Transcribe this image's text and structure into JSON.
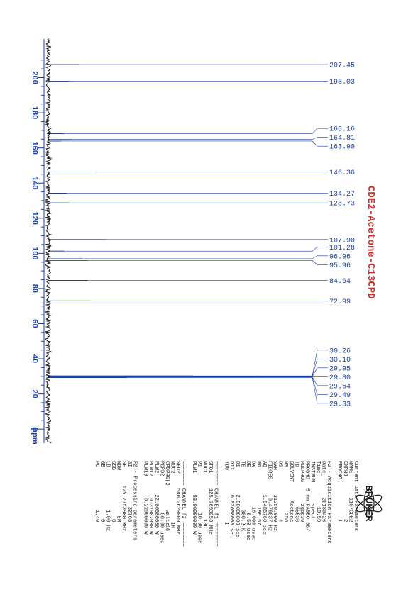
{
  "colors": {
    "spectrum": "#111111",
    "axis": "#1a3fa8",
    "title": "#d22b2b",
    "params": "#222222"
  },
  "title": "CDE2-Acetone-C13CPD",
  "brand": "BRUKER",
  "chart_data": {
    "type": "line",
    "title": "CDE2-Acetone-C13CPD",
    "xlabel": "ppm",
    "ylabel": "",
    "xlim": [
      -8,
      222
    ],
    "x_ticks": [
      200,
      180,
      160,
      140,
      120,
      100,
      80,
      60,
      40,
      20,
      0
    ],
    "x_tick_labels": [
      "200",
      "180",
      "160",
      "140",
      "120",
      "100",
      "80",
      "60",
      "40",
      "20",
      "0"
    ],
    "grid": false,
    "orientation": "rotated-90",
    "peaks": [
      {
        "ppm": 207.45,
        "label": "207.45",
        "height": 0.12
      },
      {
        "ppm": 198.03,
        "label": "198.03",
        "height": 0.08
      },
      {
        "ppm": 168.16,
        "label": "168.16",
        "height": 0.06
      },
      {
        "ppm": 164.81,
        "label": "164.81",
        "height": 0.09
      },
      {
        "ppm": 163.9,
        "label": "163.90",
        "height": 0.05
      },
      {
        "ppm": 146.36,
        "label": "146.36",
        "height": 0.17
      },
      {
        "ppm": 134.27,
        "label": "134.27",
        "height": 0.07
      },
      {
        "ppm": 128.73,
        "label": "128.73",
        "height": 0.08
      },
      {
        "ppm": 107.9,
        "label": "107.90",
        "height": 0.22
      },
      {
        "ppm": 101.28,
        "label": "101.28",
        "height": 0.06
      },
      {
        "ppm": 96.96,
        "label": "96.96",
        "height": 0.13
      },
      {
        "ppm": 95.96,
        "label": "95.96",
        "height": 0.15
      },
      {
        "ppm": 84.64,
        "label": "84.64",
        "height": 0.15
      },
      {
        "ppm": 72.99,
        "label": "72.99",
        "height": 0.16
      },
      {
        "ppm": 30.26,
        "label": "30.26",
        "height": 0.55
      },
      {
        "ppm": 30.1,
        "label": "30.10",
        "height": 0.85
      },
      {
        "ppm": 29.95,
        "label": "29.95",
        "height": 1.0
      },
      {
        "ppm": 29.8,
        "label": "29.80",
        "height": 0.95
      },
      {
        "ppm": 29.64,
        "label": "29.64",
        "height": 0.8
      },
      {
        "ppm": 29.49,
        "label": "29.49",
        "height": 0.5
      },
      {
        "ppm": 29.33,
        "label": "29.33",
        "height": 0.3
      }
    ]
  },
  "parameters": [
    "Current Data Parameters",
    "NAME        1107CDE2",
    "EXPNO              2",
    "PROCNO             1",
    "",
    "F2 - Acquisition Parameters",
    "Date_       20180426",
    "Time           10.59",
    "INSTRUM       spect",
    "PROBHD   5 mm PABBO BB/",
    "PULPROG       zgpg30",
    "TD             65536",
    "SOLVENT      Acetone",
    "NS               256",
    "DS                 4",
    "SWH        31250.000 Hz",
    "FIDRES      0.476837 Hz",
    "AQ         1.0485760 sec",
    "RG             199.57",
    "DW             16.000 usec",
    "DE               6.50 usec",
    "TE              300.2 K",
    "D1         2.00000000 sec",
    "D11        0.03000000 sec",
    "TD0                 1",
    "",
    "======== CHANNEL f1 ========",
    "SFO1     125.7693253 MHz",
    "NUC1               13C",
    "P1               10.30 usec",
    "PLW1       88.00000000 W",
    "",
    "======== CHANNEL f2 ========",
    "SFO2     500.2620009 MHz",
    "NUC2                1H",
    "CPDPRG[2        waltz16",
    "PCPD2            80.00 usec",
    "PLW2       22.00000000 W",
    "PLW12       0.37087000 W",
    "PLW13       0.22000000 W",
    "",
    "F2 - Processing parameters",
    "SI             32768",
    "SF      125.7753900 MHz",
    "WDW               EM",
    "SSB                0",
    "LB              1.00 Hz",
    "GB                 0",
    "PC              1.40"
  ]
}
